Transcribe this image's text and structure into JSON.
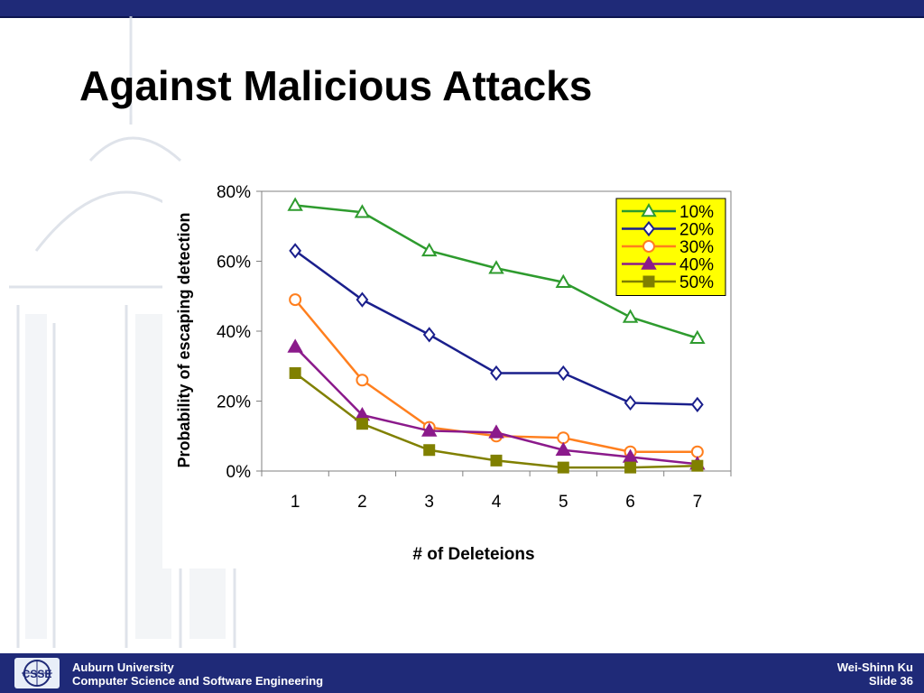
{
  "slide": {
    "title": "Against Malicious Attacks"
  },
  "footer": {
    "org_line1": "Auburn University",
    "org_line2": "Computer Science and Software Engineering",
    "author": "Wei-Shinn Ku",
    "slide_label": "Slide 36",
    "logo_text": "CSSE"
  },
  "colors": {
    "top_bar": "#1f2a78",
    "footer": "#1f2a78",
    "legend_bg": "#ffff00"
  },
  "chart_data": {
    "type": "line",
    "title": "",
    "xlabel": "# of Deleteions",
    "ylabel": "Probability of escaping detection",
    "x": [
      1,
      2,
      3,
      4,
      5,
      6,
      7
    ],
    "x_tick_labels": [
      "1",
      "2",
      "3",
      "4",
      "5",
      "6",
      "7"
    ],
    "ylim": [
      0,
      80
    ],
    "y_tick_labels": [
      "0%",
      "20%",
      "40%",
      "60%",
      "80%"
    ],
    "y_ticks": [
      0,
      20,
      40,
      60,
      80
    ],
    "grid": false,
    "legend_position": "top-right",
    "series": [
      {
        "name": "10%",
        "color": "#2e9b2e",
        "marker": "triangle-open",
        "values": [
          76,
          74,
          63,
          58,
          54,
          44,
          38
        ]
      },
      {
        "name": "20%",
        "color": "#1a1f8c",
        "marker": "diamond-open",
        "values": [
          63,
          49,
          39,
          28,
          28,
          19.5,
          19
        ]
      },
      {
        "name": "30%",
        "color": "#ff7f1e",
        "marker": "circle-open",
        "values": [
          49,
          26,
          12.5,
          10,
          9.5,
          5.5,
          5.5
        ]
      },
      {
        "name": "40%",
        "color": "#8b1a8b",
        "marker": "triangle-filled",
        "values": [
          35.5,
          16,
          11.5,
          11,
          6,
          4,
          2
        ]
      },
      {
        "name": "50%",
        "color": "#808000",
        "marker": "square-filled",
        "values": [
          28,
          13.5,
          6,
          3,
          1,
          1,
          1.5
        ]
      }
    ]
  }
}
